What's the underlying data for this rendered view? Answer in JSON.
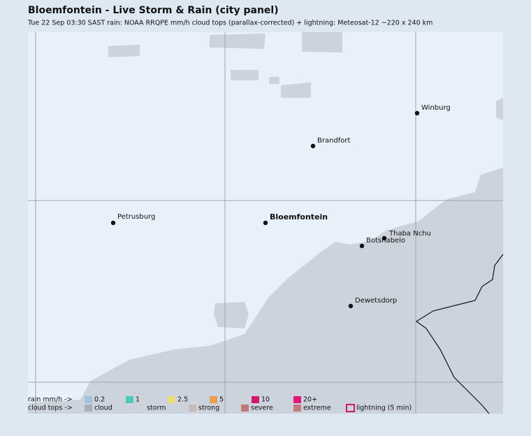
{
  "header": {
    "title": "Bloemfontein - Live Storm & Rain (city panel)",
    "subtitle": "Tue 22 Sep 03:30 SAST   rain: NOAA RRQPE mm/h   cloud tops (parallax-corrected) + lightning: Meteosat-12   ~220 x 240 km"
  },
  "places": [
    {
      "label": "Winburg"
    },
    {
      "label": "Brandfort"
    },
    {
      "label": "Petrusburg"
    },
    {
      "label": "Bloemfontein",
      "primary": true
    },
    {
      "label": "Thaba Nchu"
    },
    {
      "label": "Botshabelo"
    },
    {
      "label": "Dewetsdorp"
    }
  ],
  "legend": {
    "rain": {
      "label": "rain mm/h ->",
      "items": [
        {
          "label": "0.2",
          "color": "#9fc5dc"
        },
        {
          "label": "1",
          "color": "#4fc9b8"
        },
        {
          "label": "2.5",
          "color": "#f0dc78"
        },
        {
          "label": "5",
          "color": "#e8a050"
        },
        {
          "label": "10",
          "color": "#d01870"
        },
        {
          "label": "20+",
          "color": "#e0187a"
        }
      ]
    },
    "clouds": {
      "label": "cloud tops ->",
      "items": [
        {
          "label": "cloud",
          "color": "#a9afb8"
        },
        {
          "label": "storm",
          "color": "#cdd3dd"
        },
        {
          "label": "strong",
          "color": "#c8bcb8"
        },
        {
          "label": "severe",
          "color": "#c07878"
        },
        {
          "label": "extreme",
          "color": "#c87880"
        },
        {
          "label": "lightning (5 min)",
          "color": "#d01870",
          "outline": true
        }
      ]
    }
  }
}
